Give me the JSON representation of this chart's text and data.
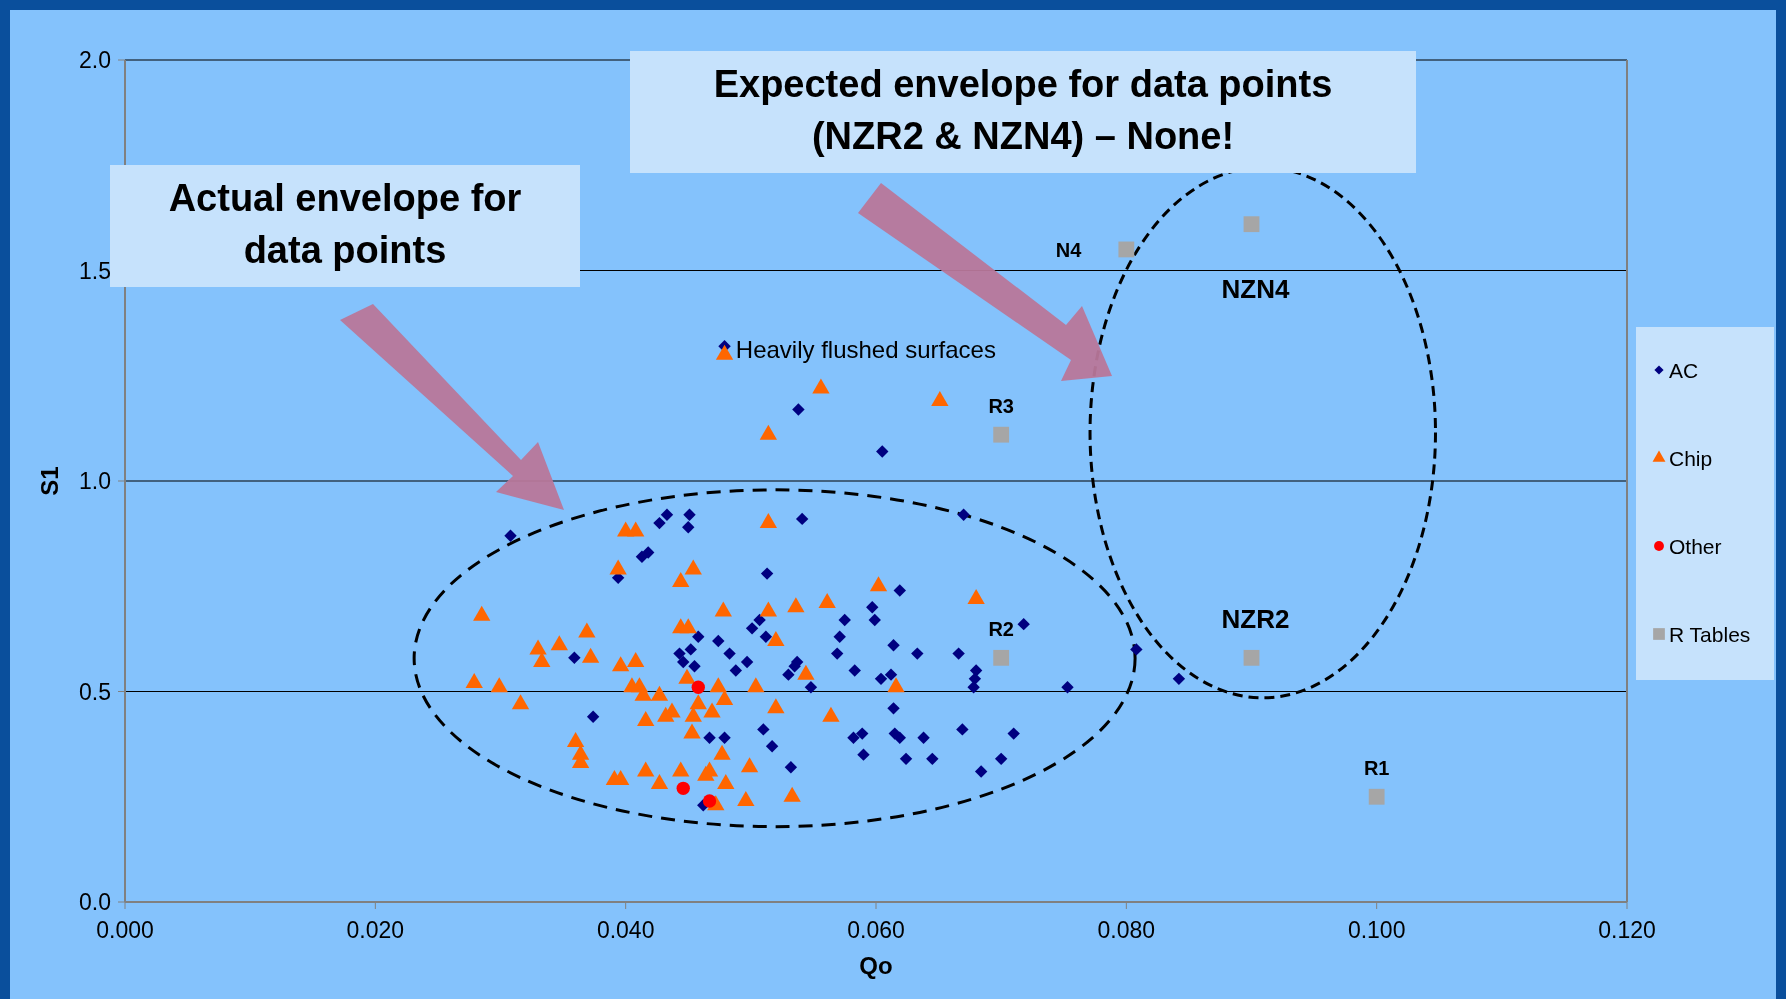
{
  "chart_data": {
    "type": "scatter",
    "xlabel": "Qo",
    "ylabel": "S1",
    "xlim": [
      0,
      0.12
    ],
    "ylim": [
      0,
      2
    ],
    "xticks": [
      {
        "value": 0,
        "label": "0.000"
      },
      {
        "value": 0.02,
        "label": "0.020"
      },
      {
        "value": 0.04,
        "label": "0.040"
      },
      {
        "value": 0.06,
        "label": "0.060"
      },
      {
        "value": 0.08,
        "label": "0.080"
      },
      {
        "value": 0.1,
        "label": "0.100"
      },
      {
        "value": 0.12,
        "label": "0.120"
      }
    ],
    "yticks": [
      {
        "value": 0,
        "label": "0.0"
      },
      {
        "value": 0.5,
        "label": "0.5"
      },
      {
        "value": 1,
        "label": "1.0"
      },
      {
        "value": 1.5,
        "label": "1.5"
      },
      {
        "value": 2,
        "label": "2.0"
      }
    ],
    "grid": "y",
    "legend": "right",
    "series": [
      {
        "name": "AC",
        "color": "#000080",
        "marker": "diamond",
        "x": [
          0.0308,
          0.0394,
          0.0413,
          0.0418,
          0.0427,
          0.0433,
          0.045,
          0.0451,
          0.0479,
          0.0538,
          0.0605,
          0.0541,
          0.067,
          0.0513,
          0.0619,
          0.0359,
          0.0374,
          0.0443,
          0.0446,
          0.0452,
          0.0458,
          0.0455,
          0.0474,
          0.0483,
          0.0488,
          0.0497,
          0.0501,
          0.0507,
          0.0512,
          0.053,
          0.0535,
          0.0537,
          0.0548,
          0.0569,
          0.0575,
          0.0571,
          0.0583,
          0.0597,
          0.0599,
          0.0604,
          0.0614,
          0.0612,
          0.0633,
          0.0666,
          0.068,
          0.0679,
          0.0678,
          0.0718,
          0.0753,
          0.0808,
          0.0842,
          0.0467,
          0.0479,
          0.0462,
          0.051,
          0.0517,
          0.0532,
          0.0582,
          0.0589,
          0.059,
          0.0614,
          0.0615,
          0.0619,
          0.0624,
          0.0638,
          0.0645,
          0.0669,
          0.0684,
          0.07,
          0.071
        ],
        "values": [
          0.87,
          0.77,
          0.82,
          0.83,
          0.9,
          0.92,
          0.89,
          0.92,
          1.32,
          1.17,
          1.07,
          0.91,
          0.92,
          0.78,
          0.74,
          0.58,
          0.44,
          0.59,
          0.57,
          0.6,
          0.63,
          0.56,
          0.62,
          0.59,
          0.55,
          0.57,
          0.65,
          0.67,
          0.63,
          0.54,
          0.56,
          0.57,
          0.51,
          0.59,
          0.67,
          0.63,
          0.55,
          0.7,
          0.67,
          0.53,
          0.61,
          0.54,
          0.59,
          0.59,
          0.55,
          0.53,
          0.51,
          0.66,
          0.51,
          0.6,
          0.53,
          0.39,
          0.39,
          0.23,
          0.41,
          0.37,
          0.32,
          0.39,
          0.4,
          0.35,
          0.46,
          0.4,
          0.39,
          0.34,
          0.39,
          0.34,
          0.41,
          0.31,
          0.34,
          0.4
        ]
      },
      {
        "name": "Chip",
        "color": "#ff6600",
        "marker": "triangle",
        "x": [
          0.0479,
          0.0556,
          0.0514,
          0.0651,
          0.04,
          0.0408,
          0.0514,
          0.0394,
          0.0454,
          0.0444,
          0.0602,
          0.068,
          0.0561,
          0.0536,
          0.0514,
          0.0478,
          0.0285,
          0.0444,
          0.045,
          0.0369,
          0.0347,
          0.052,
          0.033,
          0.0333,
          0.0372,
          0.0396,
          0.0408,
          0.0449,
          0.0544,
          0.0279,
          0.0299,
          0.0316,
          0.0405,
          0.0411,
          0.0414,
          0.0427,
          0.0458,
          0.0474,
          0.0479,
          0.0504,
          0.0616,
          0.052,
          0.0437,
          0.0416,
          0.0432,
          0.0454,
          0.0469,
          0.0564,
          0.0453,
          0.0477,
          0.036,
          0.0364,
          0.0364,
          0.0391,
          0.0396,
          0.0416,
          0.0444,
          0.0464,
          0.0467,
          0.0499,
          0.0427,
          0.048,
          0.0496,
          0.0533,
          0.0472
        ],
        "values": [
          1.3,
          1.22,
          1.11,
          1.19,
          0.88,
          0.88,
          0.9,
          0.79,
          0.79,
          0.76,
          0.75,
          0.72,
          0.71,
          0.7,
          0.69,
          0.69,
          0.68,
          0.65,
          0.65,
          0.64,
          0.61,
          0.62,
          0.6,
          0.57,
          0.58,
          0.56,
          0.57,
          0.53,
          0.54,
          0.52,
          0.51,
          0.47,
          0.51,
          0.51,
          0.49,
          0.49,
          0.47,
          0.51,
          0.48,
          0.51,
          0.51,
          0.46,
          0.45,
          0.43,
          0.44,
          0.44,
          0.45,
          0.44,
          0.4,
          0.35,
          0.38,
          0.35,
          0.33,
          0.29,
          0.29,
          0.31,
          0.31,
          0.3,
          0.31,
          0.32,
          0.28,
          0.28,
          0.24,
          0.25,
          0.23
        ]
      },
      {
        "name": "Other",
        "color": "#ff0000",
        "marker": "circle",
        "x": [
          0.0458,
          0.0446,
          0.0467
        ],
        "values": [
          0.51,
          0.27,
          0.24
        ]
      },
      {
        "name": "R Tables",
        "color": "#a6a6a6",
        "marker": "square",
        "x": [
          0.08,
          0.09,
          0.07,
          0.07,
          0.09,
          0.1
        ],
        "values": [
          1.55,
          1.61,
          1.11,
          0.58,
          0.58,
          0.25
        ]
      }
    ],
    "annotations": [
      "Expected envelope for data points (NZR2 & NZN4) – None!",
      "Actual envelope for data points",
      {
        "text": "Heavily flushed surfaces",
        "x": 0.048,
        "y": 1.31
      },
      {
        "text": "N4",
        "x": 0.08,
        "y": 1.55
      },
      {
        "text": "NZN4",
        "x": 0.09,
        "y": 1.61
      },
      {
        "text": "R3",
        "x": 0.07,
        "y": 1.11
      },
      {
        "text": "R2",
        "x": 0.07,
        "y": 0.58
      },
      {
        "text": "NZR2",
        "x": 0.09,
        "y": 0.58
      },
      {
        "text": "R1",
        "x": 0.1,
        "y": 0.25
      }
    ]
  }
}
